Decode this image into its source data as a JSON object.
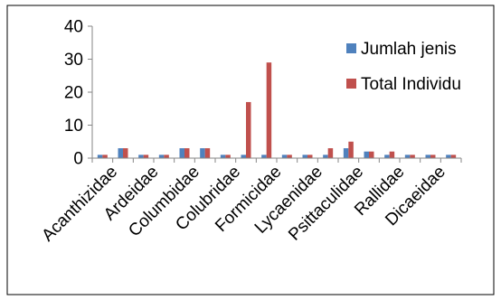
{
  "chart_data": {
    "type": "bar",
    "categories": [
      "Acanthizidae",
      "",
      "Ardeidae",
      "",
      "Columbidae",
      "",
      "Colubridae",
      "",
      "Formicidae",
      "",
      "Lycaenidae",
      "",
      "Psittaculidae",
      "",
      "Rallidae",
      "",
      "Dicaeidae",
      ""
    ],
    "x_labels": [
      "Acanthizidae",
      "Ardeidae",
      "Columbidae",
      "Colubridae",
      "Formicidae",
      "Lycaenidae",
      "Psittaculidae",
      "Rallidae",
      "Dicaeidae"
    ],
    "series": [
      {
        "name": "Jumlah jenis",
        "color": "#4F81BD",
        "values": [
          1,
          3,
          1,
          1,
          3,
          3,
          1,
          1,
          1,
          1,
          1,
          1,
          3,
          2,
          1,
          1,
          1,
          1
        ]
      },
      {
        "name": "Total Individu",
        "color": "#C0504D",
        "values": [
          1,
          3,
          1,
          1,
          3,
          3,
          1,
          17,
          29,
          1,
          1,
          3,
          5,
          2,
          2,
          1,
          1,
          1
        ]
      }
    ],
    "yticks": [
      0,
      10,
      20,
      30,
      40
    ],
    "ylim": [
      0,
      40
    ],
    "legend_position": "right",
    "grid": false
  }
}
